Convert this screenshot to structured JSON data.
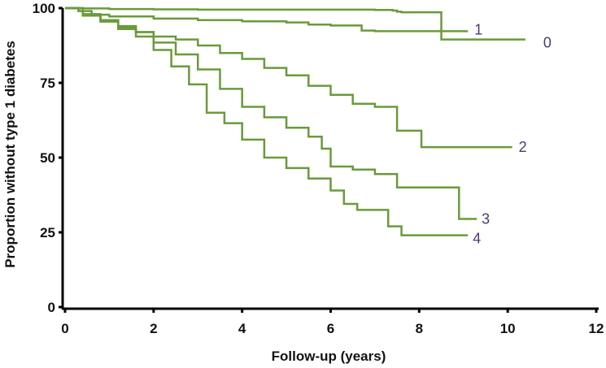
{
  "chart_data": {
    "type": "line",
    "subtype": "kaplan-meier step",
    "title": "",
    "xlabel": "Follow-up (years)",
    "ylabel": "Proportion without  type 1 diabetes",
    "xlim": [
      0,
      12
    ],
    "ylim": [
      0,
      100
    ],
    "xticks": [
      0,
      2,
      4,
      6,
      8,
      10,
      12
    ],
    "yticks": [
      0,
      25,
      50,
      75,
      100
    ],
    "grid": false,
    "legend": "inline labels at curve ends",
    "line_color": "#6a9a3a",
    "label_color": "#4a3b78",
    "series": [
      {
        "name": "0",
        "label": "0",
        "x": [
          0,
          0.3,
          1.0,
          2.0,
          3.0,
          4.0,
          5.0,
          6.0,
          7.0,
          7.4,
          7.5,
          7.6,
          8.5,
          8.5,
          10.4
        ],
        "y": [
          100,
          99.9,
          99.7,
          99.6,
          99.5,
          99.5,
          99.5,
          99.5,
          99.4,
          99.2,
          98.8,
          98.6,
          98.6,
          89.5,
          89.5
        ]
      },
      {
        "name": "1",
        "label": "1",
        "x": [
          0,
          0.3,
          0.6,
          1.0,
          2.0,
          3.0,
          4.0,
          5.0,
          5.5,
          6.0,
          6.7,
          7.0,
          9.1
        ],
        "y": [
          100,
          99,
          97.8,
          97.2,
          96.5,
          96,
          95.6,
          95.2,
          94.5,
          94.2,
          92.5,
          92.3,
          92.3
        ]
      },
      {
        "name": "2",
        "label": "2",
        "x": [
          0,
          0.4,
          0.8,
          1.2,
          1.6,
          2.0,
          2.5,
          3.0,
          3.5,
          4.0,
          4.5,
          5.0,
          5.5,
          6.0,
          6.5,
          7.0,
          7.5,
          8.0,
          8.05,
          10.1
        ],
        "y": [
          100,
          97.5,
          95.5,
          93.5,
          92,
          90.5,
          89.5,
          87.5,
          85,
          83,
          80,
          77.5,
          74,
          71,
          68,
          67,
          59,
          59,
          53.5,
          53.5
        ]
      },
      {
        "name": "3",
        "label": "3",
        "x": [
          0,
          0.4,
          0.8,
          1.2,
          1.6,
          2.0,
          2.5,
          3.0,
          3.5,
          4.0,
          4.5,
          5.0,
          5.5,
          5.8,
          6.0,
          6.5,
          7.0,
          7.5,
          8.0,
          8.9,
          8.9,
          9.3
        ],
        "y": [
          100,
          98,
          96,
          94,
          92,
          88.5,
          84.5,
          79.5,
          73,
          67,
          63.5,
          60,
          57,
          53,
          47,
          46,
          44.5,
          40,
          40,
          40,
          29.5,
          29.5
        ]
      },
      {
        "name": "4",
        "label": "4",
        "x": [
          0,
          0.4,
          0.8,
          1.2,
          1.6,
          2.0,
          2.4,
          2.8,
          3.2,
          3.6,
          4.0,
          4.5,
          5.0,
          5.5,
          6.0,
          6.3,
          6.6,
          7.0,
          7.3,
          7.5,
          7.6,
          9.1
        ],
        "y": [
          100,
          97.5,
          95.5,
          93,
          90.5,
          86,
          80.5,
          74.5,
          65,
          61.5,
          56,
          50,
          46.5,
          43,
          39,
          34.5,
          32.5,
          32.5,
          27,
          27,
          24,
          24
        ]
      }
    ]
  }
}
